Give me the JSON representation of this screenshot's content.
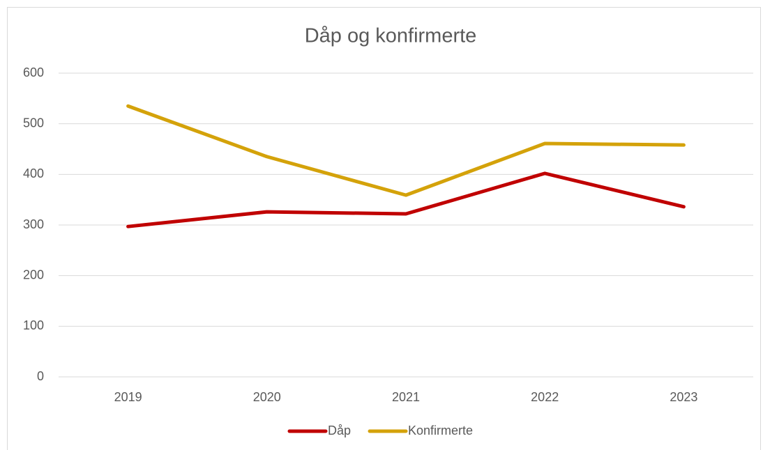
{
  "chart_data": {
    "type": "line",
    "title": "Dåp og konfirmerte",
    "categories": [
      "2019",
      "2020",
      "2021",
      "2022",
      "2023"
    ],
    "series": [
      {
        "name": "Dåp",
        "color": "#c00000",
        "values": [
          297,
          326,
          322,
          402,
          336
        ]
      },
      {
        "name": "Konfirmerte",
        "color": "#d4a20a",
        "values": [
          535,
          435,
          359,
          461,
          458
        ]
      }
    ],
    "ylim": [
      0,
      600
    ],
    "yticks": [
      0,
      100,
      200,
      300,
      400,
      500,
      600
    ],
    "grid": true,
    "legend": "bottom"
  }
}
